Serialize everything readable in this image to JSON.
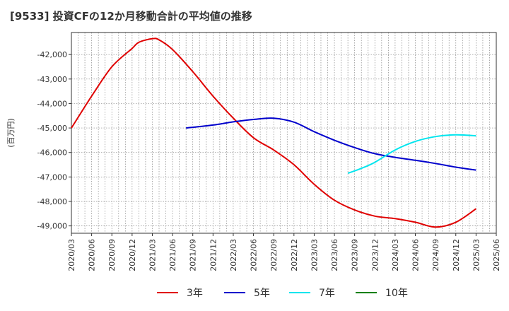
{
  "chart_data": {
    "type": "line",
    "title": "[9533]  投資CFの12か月移動合計の平均値の推移",
    "ylabel": "(百万円)",
    "xlabel": "",
    "ylim": [
      -49300,
      -41100
    ],
    "y_ticks": [
      -42000,
      -43000,
      -44000,
      -45000,
      -46000,
      -47000,
      -48000,
      -49000
    ],
    "y_tick_labels": [
      "-42,000",
      "-43,000",
      "-44,000",
      "-45,000",
      "-46,000",
      "-47,000",
      "-48,000",
      "-49,000"
    ],
    "x_tick_labels": [
      "2020/03",
      "2020/06",
      "2020/09",
      "2020/12",
      "2021/03",
      "2021/06",
      "2021/09",
      "2021/12",
      "2022/03",
      "2022/06",
      "2022/09",
      "2022/12",
      "2023/03",
      "2023/06",
      "2023/09",
      "2023/12",
      "2024/03",
      "2024/06",
      "2024/09",
      "2024/12",
      "2025/03",
      "2025/06"
    ],
    "grid": true,
    "legend_position": "bottom",
    "series": [
      {
        "name": "3年",
        "color": "#e00000",
        "x": [
          "2020/03",
          "2020/06",
          "2020/09",
          "2020/12",
          "2021/01",
          "2021/03",
          "2021/04",
          "2021/06",
          "2021/09",
          "2021/12",
          "2022/03",
          "2022/06",
          "2022/09",
          "2022/12",
          "2023/03",
          "2023/06",
          "2023/09",
          "2023/12",
          "2024/03",
          "2024/06",
          "2024/09",
          "2024/12",
          "2025/03"
        ],
        "values": [
          -45000,
          -43700,
          -42500,
          -41750,
          -41500,
          -41350,
          -41400,
          -41800,
          -42700,
          -43700,
          -44600,
          -45400,
          -45900,
          -46500,
          -47300,
          -47950,
          -48350,
          -48600,
          -48700,
          -48850,
          -49050,
          -48850,
          -48300
        ]
      },
      {
        "name": "5年",
        "color": "#0000cc",
        "x": [
          "2021/08",
          "2021/12",
          "2022/03",
          "2022/06",
          "2022/09",
          "2022/12",
          "2023/03",
          "2023/06",
          "2023/09",
          "2023/12",
          "2024/03",
          "2024/06",
          "2024/09",
          "2024/12",
          "2025/03"
        ],
        "values": [
          -45000,
          -44880,
          -44750,
          -44650,
          -44600,
          -44760,
          -45150,
          -45500,
          -45800,
          -46050,
          -46200,
          -46320,
          -46450,
          -46600,
          -46720
        ]
      },
      {
        "name": "7年",
        "color": "#00e5ee",
        "x": [
          "2023/08",
          "2023/10",
          "2023/12",
          "2024/03",
          "2024/06",
          "2024/09",
          "2024/12",
          "2025/03"
        ],
        "values": [
          -46850,
          -46650,
          -46400,
          -45900,
          -45550,
          -45350,
          -45280,
          -45320
        ]
      },
      {
        "name": "10年",
        "color": "#008000",
        "x": [],
        "values": []
      }
    ]
  }
}
